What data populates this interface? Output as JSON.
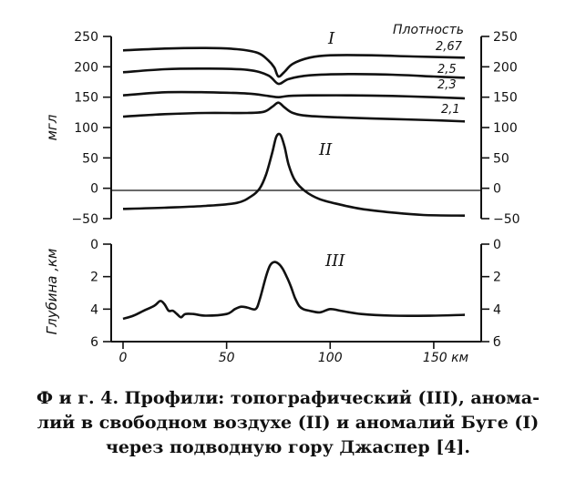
{
  "chart_data": [
    {
      "type": "line",
      "panel": "gravity",
      "x_unit": "км",
      "ylabel": "мгл",
      "ylim": [
        -50,
        250
      ],
      "yticks": [
        250,
        200,
        150,
        100,
        50,
        0,
        -50
      ],
      "ytick_labels": [
        "250",
        "200",
        "150",
        "100",
        "50",
        "0",
        "−50"
      ],
      "ytick_labels_right": [
        "250",
        "200",
        "150",
        "100",
        "50",
        "0",
        "−50"
      ],
      "zero_line": true,
      "grid": false,
      "curve_labels": [
        "I",
        "II"
      ],
      "legend_title": "Плотность",
      "series": [
        {
          "name": "2,67",
          "x": [
            0,
            20,
            40,
            55,
            65,
            70,
            73,
            75,
            78,
            82,
            90,
            100,
            120,
            140,
            165
          ],
          "y": [
            227,
            230,
            231,
            229,
            223,
            211,
            199,
            184,
            192,
            205,
            215,
            219,
            219,
            217,
            215
          ]
        },
        {
          "name": "2,5",
          "x": [
            0,
            20,
            40,
            60,
            70,
            75,
            80,
            90,
            110,
            130,
            150,
            165
          ],
          "y": [
            191,
            196,
            197,
            195,
            186,
            172,
            180,
            186,
            188,
            187,
            184,
            182
          ]
        },
        {
          "name": "2,3",
          "x": [
            0,
            20,
            40,
            60,
            70,
            75,
            80,
            90,
            110,
            130,
            150,
            165
          ],
          "y": [
            153,
            158,
            158,
            156,
            152,
            150,
            152,
            153,
            153,
            152,
            150,
            148
          ]
        },
        {
          "name": "2,1",
          "x": [
            0,
            20,
            40,
            60,
            68,
            72,
            75,
            78,
            82,
            90,
            110,
            130,
            150,
            165
          ],
          "y": [
            118,
            122,
            124,
            124,
            126,
            134,
            141,
            133,
            124,
            119,
            116,
            114,
            112,
            110
          ]
        },
        {
          "name": "II",
          "x": [
            0,
            20,
            40,
            55,
            62,
            66,
            69,
            72,
            74,
            76,
            78,
            80,
            83,
            88,
            95,
            105,
            115,
            130,
            145,
            165
          ],
          "y": [
            -34,
            -32,
            -29,
            -24,
            -13,
            0,
            22,
            58,
            85,
            88,
            68,
            38,
            13,
            -5,
            -18,
            -27,
            -34,
            -40,
            -44,
            -45
          ]
        }
      ]
    },
    {
      "type": "line",
      "panel": "depth",
      "curve_label": "III",
      "ylabel": "Глубина ,км",
      "ylim": [
        0,
        6
      ],
      "yticks": [
        0,
        2,
        4,
        6
      ],
      "ytick_labels": [
        "0",
        "2",
        "4",
        "6"
      ],
      "ytick_labels_right": [
        "0",
        "2",
        "4",
        "б"
      ],
      "xlim": [
        0,
        165
      ],
      "xticks": [
        0,
        50,
        100,
        150
      ],
      "xtick_labels": [
        "0",
        "50",
        "100",
        "150 км"
      ],
      "grid": false,
      "series": [
        {
          "name": "III",
          "x": [
            0,
            5,
            10,
            15,
            18,
            20,
            22,
            24,
            26,
            28,
            30,
            34,
            40,
            50,
            54,
            57,
            60,
            64,
            66,
            69,
            71,
            73,
            75,
            77,
            79,
            81,
            83,
            85,
            87,
            90,
            95,
            100,
            105,
            115,
            130,
            150,
            165
          ],
          "y": [
            4.6,
            4.4,
            4.1,
            3.8,
            3.5,
            3.7,
            4.1,
            4.1,
            4.3,
            4.5,
            4.3,
            4.3,
            4.4,
            4.3,
            4.0,
            3.85,
            3.9,
            4.0,
            3.4,
            2.0,
            1.3,
            1.1,
            1.2,
            1.5,
            2.0,
            2.6,
            3.3,
            3.8,
            4.0,
            4.1,
            4.2,
            4.0,
            4.1,
            4.3,
            4.4,
            4.4,
            4.35
          ]
        }
      ]
    }
  ],
  "caption": {
    "line1": "Ф и г. 4. Профили: топографический (III), анома-",
    "line2": "лий в свободном воздухе (II) и аномалий Буге (I)",
    "line3": "через подводную гору Джаспер [4]."
  },
  "colors": {
    "ink": "#111111",
    "background": "#ffffff"
  }
}
